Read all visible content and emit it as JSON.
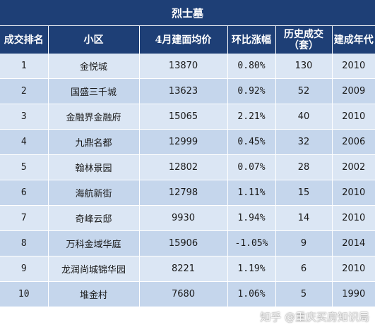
{
  "title": "烈士墓",
  "headers": [
    "成交排名",
    "小区",
    "4月建面均价",
    "环比涨幅",
    "历史成交（套）",
    "建成年代"
  ],
  "rows": [
    {
      "rank": "1",
      "name": "金悦城",
      "price": "13870",
      "change": "0.80%",
      "deals": "130",
      "year": "2010"
    },
    {
      "rank": "2",
      "name": "国盛三千城",
      "price": "13623",
      "change": "0.92%",
      "deals": "52",
      "year": "2009"
    },
    {
      "rank": "3",
      "name": "金融界金融府",
      "price": "15065",
      "change": "2.21%",
      "deals": "40",
      "year": "2010"
    },
    {
      "rank": "4",
      "name": "九鼎名都",
      "price": "12999",
      "change": "0.45%",
      "deals": "32",
      "year": "2006"
    },
    {
      "rank": "5",
      "name": "翰林景园",
      "price": "12802",
      "change": "0.07%",
      "deals": "28",
      "year": "2002"
    },
    {
      "rank": "6",
      "name": "海航新街",
      "price": "12798",
      "change": "1.11%",
      "deals": "15",
      "year": "2010"
    },
    {
      "rank": "7",
      "name": "奇峰云邸",
      "price": "9930",
      "change": "1.94%",
      "deals": "14",
      "year": "2010"
    },
    {
      "rank": "8",
      "name": "万科金域华庭",
      "price": "15906",
      "change": "-1.05%",
      "deals": "9",
      "year": "2014"
    },
    {
      "rank": "9",
      "name": "龙润尚城锦华园",
      "price": "8221",
      "change": "1.19%",
      "deals": "6",
      "year": "2010"
    },
    {
      "rank": "10",
      "name": "堆金村",
      "price": "7680",
      "change": "1.06%",
      "deals": "5",
      "year": "1990"
    }
  ],
  "watermark": "知乎 @重庆买房知识局",
  "colors": {
    "header_bg": "#1e3f76",
    "row_light": "#dbe6f4",
    "row_dark": "#c5d6ec"
  }
}
